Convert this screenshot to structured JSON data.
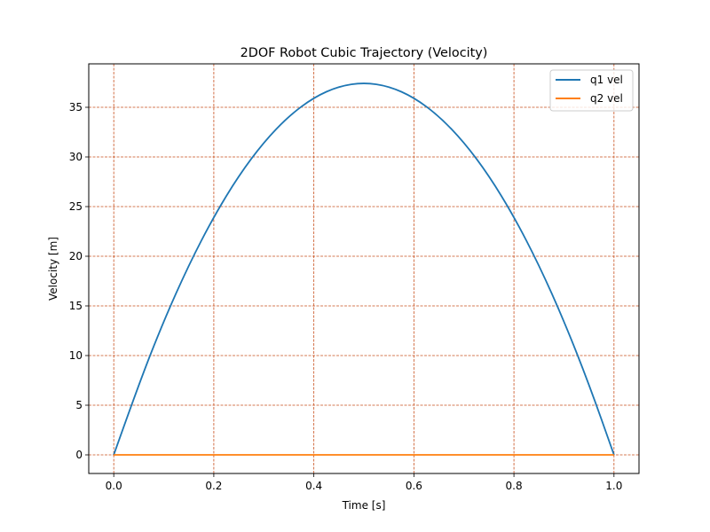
{
  "chart_data": {
    "type": "line",
    "title": "2DOF Robot Cubic Trajectory (Velocity)",
    "xlabel": "Time [s]",
    "ylabel": "Velocity [m]",
    "xlim": [
      -0.05,
      1.05
    ],
    "ylim": [
      -1.875,
      39.375
    ],
    "xticks": [
      0.0,
      0.2,
      0.4,
      0.6,
      0.8,
      1.0
    ],
    "xtick_labels": [
      "0.0",
      "0.2",
      "0.4",
      "0.6",
      "0.8",
      "1.0"
    ],
    "yticks": [
      0,
      5,
      10,
      15,
      20,
      25,
      30,
      35
    ],
    "ytick_labels": [
      "0",
      "5",
      "10",
      "15",
      "20",
      "25",
      "30",
      "35"
    ],
    "grid": true,
    "grid_style": "dashed",
    "legend_position": "top-right",
    "colors": {
      "grid": "#c8501e",
      "q1": "#1f77b4",
      "q2": "#ff7f0e"
    },
    "series": [
      {
        "name": "q1 vel",
        "color": "#1f77b4",
        "x": [
          0.0,
          0.05,
          0.1,
          0.15,
          0.2,
          0.25,
          0.3,
          0.35,
          0.4,
          0.45,
          0.5,
          0.55,
          0.6,
          0.65,
          0.7,
          0.75,
          0.8,
          0.85,
          0.9,
          0.95,
          1.0
        ],
        "y": [
          0.0,
          7.125,
          13.5,
          19.125,
          24.0,
          28.125,
          31.5,
          34.125,
          36.0,
          37.125,
          37.5,
          37.125,
          36.0,
          34.125,
          31.5,
          28.125,
          24.0,
          19.125,
          13.5,
          7.125,
          0.0
        ]
      },
      {
        "name": "q2 vel",
        "color": "#ff7f0e",
        "x": [
          0.0,
          1.0
        ],
        "y": [
          0.0,
          0.0
        ]
      }
    ]
  }
}
